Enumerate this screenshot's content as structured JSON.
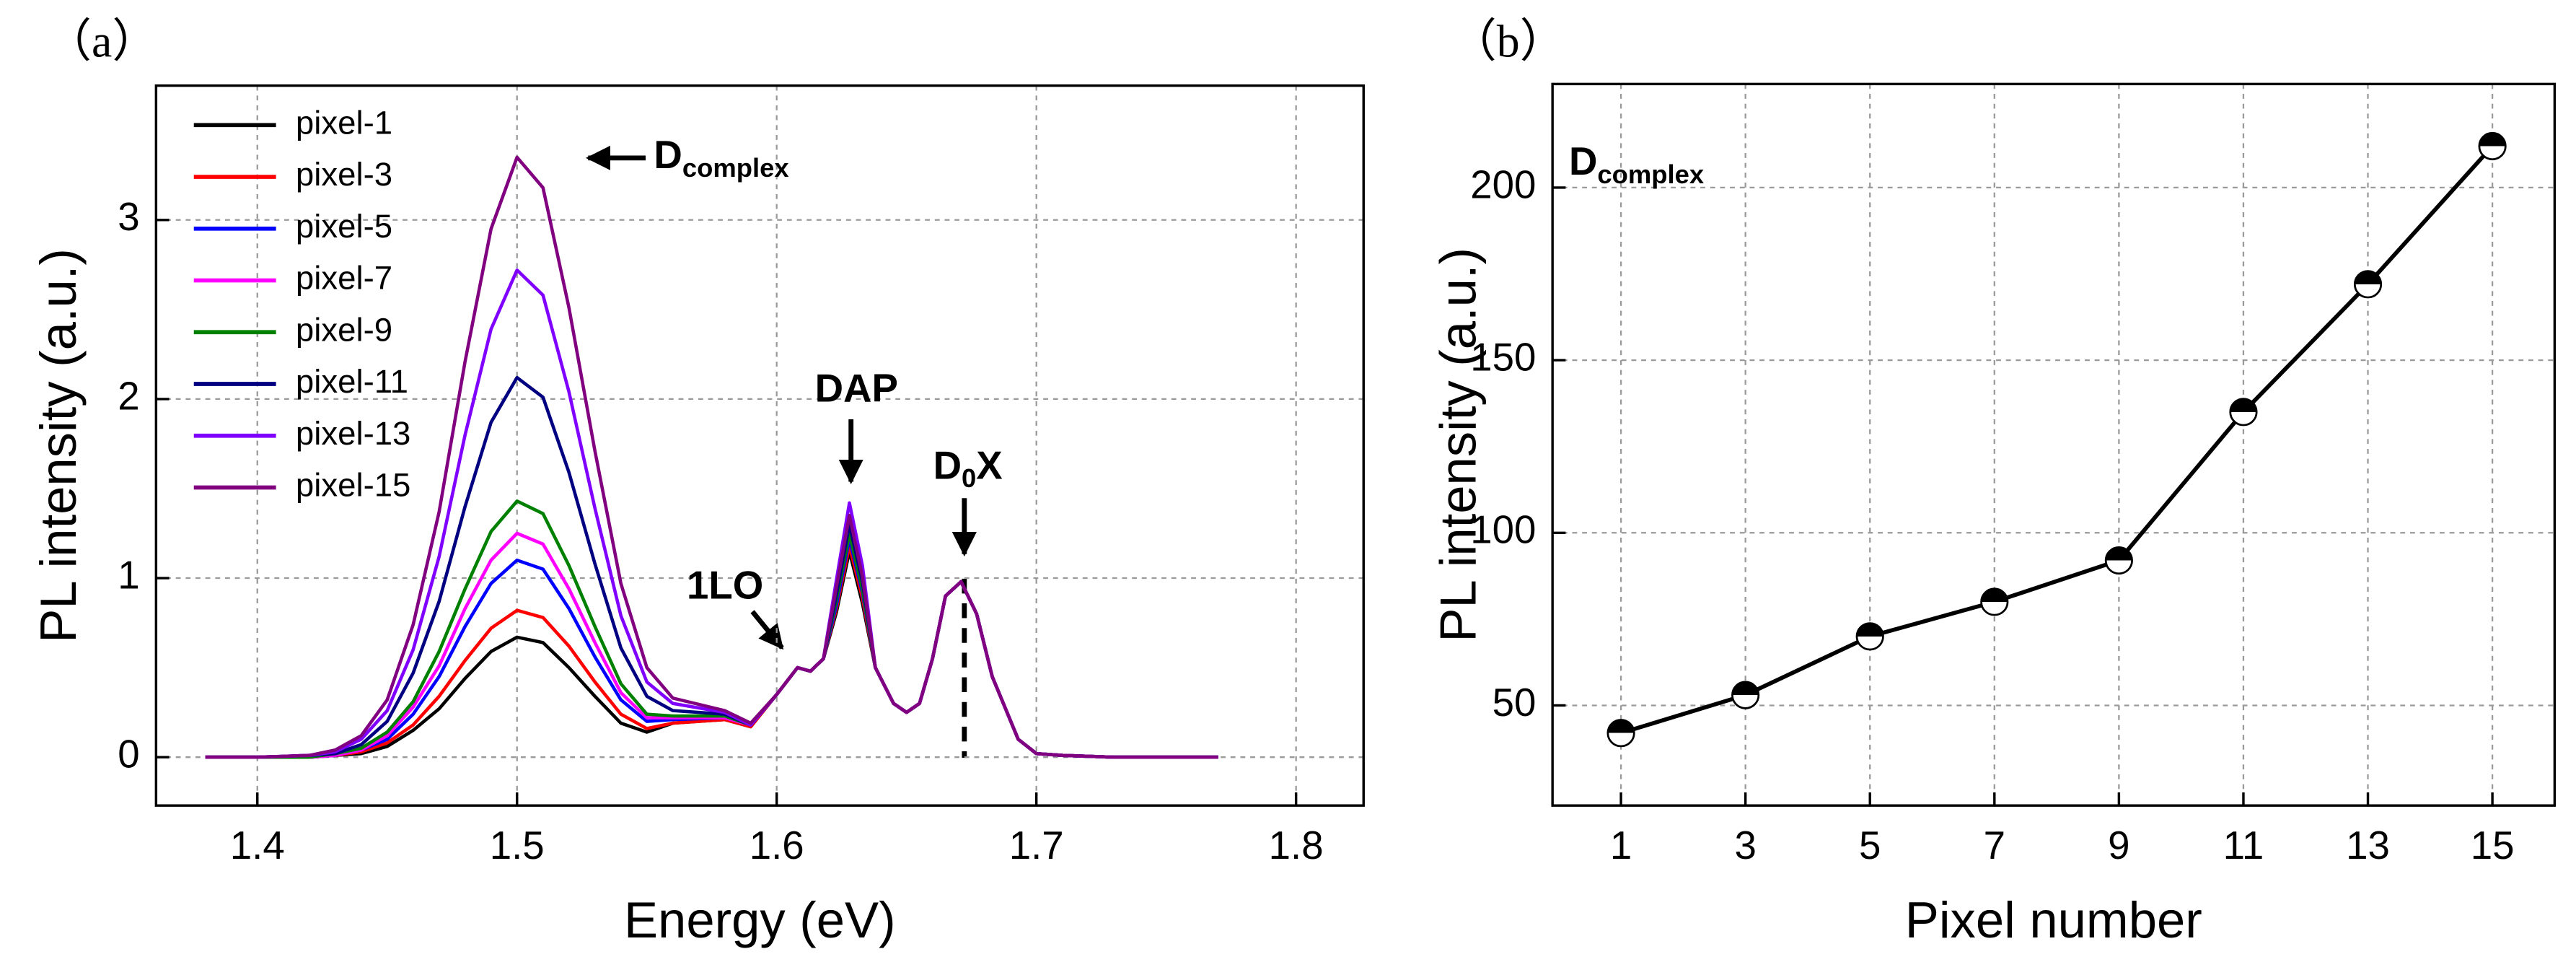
{
  "chart_data": [
    {
      "type": "line",
      "panel_label": "（a）",
      "xlabel": "Energy (eV)",
      "ylabel": "PL intensity (a.u.)",
      "x": [
        1.38,
        1.4,
        1.42,
        1.43,
        1.44,
        1.45,
        1.46,
        1.47,
        1.48,
        1.49,
        1.5,
        1.51,
        1.52,
        1.53,
        1.54,
        1.55,
        1.56,
        1.58,
        1.59,
        1.6,
        1.608,
        1.613,
        1.618,
        1.623,
        1.628,
        1.633,
        1.638,
        1.645,
        1.65,
        1.655,
        1.66,
        1.665,
        1.671,
        1.677,
        1.683,
        1.693,
        1.7,
        1.71,
        1.73,
        1.77
      ],
      "series": [
        {
          "name": "pixel-1",
          "color": "#000000",
          "values": [
            0,
            0,
            0,
            0.01,
            0.02,
            0.06,
            0.15,
            0.27,
            0.44,
            0.59,
            0.67,
            0.64,
            0.5,
            0.34,
            0.19,
            0.14,
            0.19,
            0.21,
            0.17,
            0.35,
            0.5,
            0.48,
            0.55,
            0.81,
            1.15,
            0.86,
            0.5,
            0.3,
            0.25,
            0.3,
            0.55,
            0.9,
            0.98,
            0.8,
            0.45,
            0.1,
            0.02,
            0.01,
            0,
            0
          ]
        },
        {
          "name": "pixel-3",
          "color": "#ff0000",
          "values": [
            0,
            0,
            0,
            0.01,
            0.03,
            0.08,
            0.18,
            0.34,
            0.54,
            0.72,
            0.82,
            0.78,
            0.62,
            0.42,
            0.24,
            0.16,
            0.19,
            0.21,
            0.17,
            0.35,
            0.5,
            0.48,
            0.55,
            0.83,
            1.18,
            0.89,
            0.5,
            0.3,
            0.25,
            0.3,
            0.55,
            0.9,
            0.98,
            0.8,
            0.45,
            0.1,
            0.02,
            0.01,
            0,
            0
          ]
        },
        {
          "name": "pixel-5",
          "color": "#0000ff",
          "values": [
            0,
            0,
            0,
            0.01,
            0.04,
            0.1,
            0.24,
            0.45,
            0.73,
            0.97,
            1.1,
            1.05,
            0.83,
            0.56,
            0.32,
            0.2,
            0.21,
            0.22,
            0.18,
            0.35,
            0.5,
            0.48,
            0.55,
            0.85,
            1.22,
            0.92,
            0.5,
            0.3,
            0.25,
            0.3,
            0.55,
            0.9,
            0.98,
            0.8,
            0.45,
            0.1,
            0.02,
            0.01,
            0,
            0
          ]
        },
        {
          "name": "pixel-7",
          "color": "#ff00ff",
          "values": [
            0,
            0,
            0,
            0.01,
            0.04,
            0.12,
            0.28,
            0.51,
            0.83,
            1.1,
            1.25,
            1.19,
            0.94,
            0.64,
            0.36,
            0.22,
            0.22,
            0.22,
            0.18,
            0.35,
            0.5,
            0.48,
            0.55,
            0.88,
            1.25,
            0.94,
            0.5,
            0.3,
            0.25,
            0.3,
            0.55,
            0.9,
            0.98,
            0.8,
            0.45,
            0.1,
            0.02,
            0.01,
            0,
            0
          ]
        },
        {
          "name": "pixel-9",
          "color": "#008000",
          "values": [
            0,
            0,
            0,
            0.02,
            0.05,
            0.14,
            0.31,
            0.59,
            0.94,
            1.26,
            1.43,
            1.36,
            1.07,
            0.73,
            0.41,
            0.24,
            0.23,
            0.23,
            0.18,
            0.35,
            0.5,
            0.48,
            0.55,
            0.88,
            1.25,
            0.94,
            0.5,
            0.3,
            0.25,
            0.3,
            0.55,
            0.9,
            0.98,
            0.8,
            0.45,
            0.1,
            0.02,
            0.01,
            0,
            0
          ]
        },
        {
          "name": "pixel-11",
          "color": "#000080",
          "values": [
            0,
            0,
            0.01,
            0.02,
            0.07,
            0.2,
            0.47,
            0.87,
            1.4,
            1.87,
            2.12,
            2.01,
            1.59,
            1.08,
            0.61,
            0.34,
            0.26,
            0.24,
            0.18,
            0.35,
            0.5,
            0.48,
            0.55,
            0.91,
            1.3,
            0.98,
            0.5,
            0.3,
            0.25,
            0.3,
            0.55,
            0.9,
            0.98,
            0.8,
            0.45,
            0.1,
            0.02,
            0.01,
            0,
            0
          ]
        },
        {
          "name": "pixel-13",
          "color": "#8000ff",
          "values": [
            0,
            0,
            0.01,
            0.03,
            0.1,
            0.26,
            0.6,
            1.12,
            1.8,
            2.39,
            2.72,
            2.58,
            2.04,
            1.39,
            0.79,
            0.42,
            0.3,
            0.25,
            0.18,
            0.35,
            0.5,
            0.48,
            0.55,
            0.99,
            1.42,
            1.07,
            0.5,
            0.3,
            0.25,
            0.3,
            0.55,
            0.9,
            0.98,
            0.8,
            0.45,
            0.1,
            0.02,
            0.01,
            0,
            0
          ]
        },
        {
          "name": "pixel-15",
          "color": "#800080",
          "values": [
            0,
            0,
            0.01,
            0.04,
            0.12,
            0.32,
            0.74,
            1.37,
            2.21,
            2.95,
            3.35,
            3.18,
            2.51,
            1.71,
            0.97,
            0.5,
            0.33,
            0.26,
            0.19,
            0.35,
            0.5,
            0.48,
            0.55,
            0.95,
            1.35,
            1.01,
            0.5,
            0.3,
            0.25,
            0.3,
            0.55,
            0.9,
            0.98,
            0.8,
            0.45,
            0.1,
            0.02,
            0.01,
            0,
            0
          ]
        }
      ],
      "xlim": [
        1.361,
        1.826
      ],
      "xticks": [
        1.4,
        1.5,
        1.6,
        1.7,
        1.8
      ],
      "ylim": [
        -0.27,
        3.75
      ],
      "yticks": [
        0,
        1,
        2,
        3
      ],
      "grid": true,
      "legend": "upper left",
      "annotations": [
        {
          "text": "D",
          "sub": "complex"
        },
        {
          "text": "DAP"
        },
        {
          "text": "1LO"
        },
        {
          "text": "D",
          "sub": "0",
          "after": "X"
        }
      ]
    },
    {
      "type": "line",
      "panel_label": "（b）",
      "xlabel": "Pixel number",
      "ylabel": "PL intensity (a.u.)",
      "x": [
        1,
        3,
        5,
        7,
        9,
        11,
        13,
        15
      ],
      "values": [
        42,
        53,
        70,
        80,
        92,
        135,
        172,
        212
      ],
      "color": "#000000",
      "markers": true,
      "xlim": [
        -0.1,
        16
      ],
      "xticks": [
        1,
        3,
        5,
        7,
        9,
        11,
        13,
        15
      ],
      "ylim": [
        21,
        230
      ],
      "yticks": [
        50,
        100,
        150,
        200
      ],
      "grid": true,
      "annotations": [
        {
          "text": "D",
          "sub": "complex"
        }
      ]
    }
  ]
}
